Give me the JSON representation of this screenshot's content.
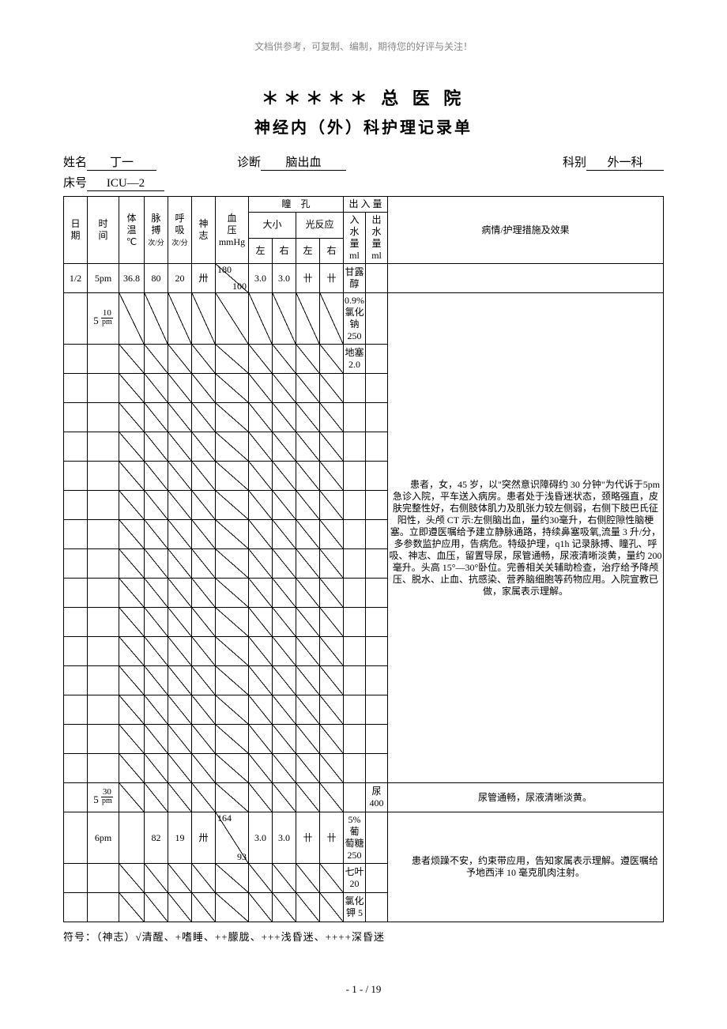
{
  "headerNote": "文档供参考，可复制、编制，期待您的好评与关注！",
  "hospitalTitle": "＊＊＊＊＊ 总 医 院",
  "formTitle": "神经内（外）科护理记录单",
  "labels": {
    "name": "姓名",
    "diagnosis": "诊断",
    "dept": "科别",
    "bed": "床号"
  },
  "patient": {
    "name": "丁一",
    "diagnosis": "脑出血",
    "dept": "外一科",
    "bed": "ICU—2"
  },
  "headers": {
    "date": "日\n期",
    "time": "时\n间",
    "temp": "体\n温\n℃",
    "pulse": "脉\n搏",
    "pulseUnit": "次/分",
    "resp": "呼\n吸",
    "respUnit": "次/分",
    "mind": "神\n志",
    "bp": "血\n压\nmmHg",
    "pupil": "瞳　孔",
    "pupilSize": "大小",
    "pupilLight": "光反应",
    "left": "左",
    "right": "右",
    "io": "出 入 量",
    "inWater": "入\n水\n量\nml",
    "outWater": "出\n水\n量\nml",
    "notes": "病情/护理措施及效果"
  },
  "rows": [
    {
      "date": "1/2",
      "time": "5pm",
      "temp": "36.8",
      "pulse": "80",
      "resp": "20",
      "mind": "卅",
      "bp": {
        "sys": "180",
        "dia": "100"
      },
      "pl": "3.0",
      "pr": "3.0",
      "ll": "卄",
      "lr": "卄",
      "in": "甘露\n醇",
      "out": "",
      "diag": false
    },
    {
      "date": "",
      "time": {
        "big": "5",
        "num": "10",
        "den": "pm"
      },
      "temp": "",
      "pulse": "",
      "resp": "",
      "mind": "",
      "bp": null,
      "pl": "",
      "pr": "",
      "ll": "",
      "lr": "",
      "in": "0.9%\n氯化\n钠\n250",
      "out": "",
      "diag": true
    },
    {
      "date": "",
      "time": "",
      "temp": "",
      "pulse": "",
      "resp": "",
      "mind": "",
      "bp": null,
      "pl": "",
      "pr": "",
      "ll": "",
      "lr": "",
      "in": "地塞\n2.0",
      "out": "",
      "diag": true
    },
    {
      "date": "",
      "time": "",
      "temp": "",
      "pulse": "",
      "resp": "",
      "mind": "",
      "bp": null,
      "pl": "",
      "pr": "",
      "ll": "",
      "lr": "",
      "in": "",
      "out": "",
      "diag": true
    },
    {
      "date": "",
      "time": "",
      "temp": "",
      "pulse": "",
      "resp": "",
      "mind": "",
      "bp": null,
      "pl": "",
      "pr": "",
      "ll": "",
      "lr": "",
      "in": "",
      "out": "",
      "diag": true
    },
    {
      "date": "",
      "time": "",
      "temp": "",
      "pulse": "",
      "resp": "",
      "mind": "",
      "bp": null,
      "pl": "",
      "pr": "",
      "ll": "",
      "lr": "",
      "in": "",
      "out": "",
      "diag": true
    },
    {
      "date": "",
      "time": "",
      "temp": "",
      "pulse": "",
      "resp": "",
      "mind": "",
      "bp": null,
      "pl": "",
      "pr": "",
      "ll": "",
      "lr": "",
      "in": "",
      "out": "",
      "diag": true
    },
    {
      "date": "",
      "time": "",
      "temp": "",
      "pulse": "",
      "resp": "",
      "mind": "",
      "bp": null,
      "pl": "",
      "pr": "",
      "ll": "",
      "lr": "",
      "in": "",
      "out": "",
      "diag": true
    },
    {
      "date": "",
      "time": "",
      "temp": "",
      "pulse": "",
      "resp": "",
      "mind": "",
      "bp": null,
      "pl": "",
      "pr": "",
      "ll": "",
      "lr": "",
      "in": "",
      "out": "",
      "diag": true
    },
    {
      "date": "",
      "time": "",
      "temp": "",
      "pulse": "",
      "resp": "",
      "mind": "",
      "bp": null,
      "pl": "",
      "pr": "",
      "ll": "",
      "lr": "",
      "in": "",
      "out": "",
      "diag": true
    },
    {
      "date": "",
      "time": "",
      "temp": "",
      "pulse": "",
      "resp": "",
      "mind": "",
      "bp": null,
      "pl": "",
      "pr": "",
      "ll": "",
      "lr": "",
      "in": "",
      "out": "",
      "diag": true
    },
    {
      "date": "",
      "time": "",
      "temp": "",
      "pulse": "",
      "resp": "",
      "mind": "",
      "bp": null,
      "pl": "",
      "pr": "",
      "ll": "",
      "lr": "",
      "in": "",
      "out": "",
      "diag": true
    },
    {
      "date": "",
      "time": "",
      "temp": "",
      "pulse": "",
      "resp": "",
      "mind": "",
      "bp": null,
      "pl": "",
      "pr": "",
      "ll": "",
      "lr": "",
      "in": "",
      "out": "",
      "diag": true
    },
    {
      "date": "",
      "time": "",
      "temp": "",
      "pulse": "",
      "resp": "",
      "mind": "",
      "bp": null,
      "pl": "",
      "pr": "",
      "ll": "",
      "lr": "",
      "in": "",
      "out": "",
      "diag": true
    },
    {
      "date": "",
      "time": "",
      "temp": "",
      "pulse": "",
      "resp": "",
      "mind": "",
      "bp": null,
      "pl": "",
      "pr": "",
      "ll": "",
      "lr": "",
      "in": "",
      "out": "",
      "diag": true
    },
    {
      "date": "",
      "time": "",
      "temp": "",
      "pulse": "",
      "resp": "",
      "mind": "",
      "bp": null,
      "pl": "",
      "pr": "",
      "ll": "",
      "lr": "",
      "in": "",
      "out": "",
      "diag": true
    },
    {
      "date": "",
      "time": "",
      "temp": "",
      "pulse": "",
      "resp": "",
      "mind": "",
      "bp": null,
      "pl": "",
      "pr": "",
      "ll": "",
      "lr": "",
      "in": "",
      "out": "",
      "diag": true
    },
    {
      "date": "",
      "time": {
        "big": "5",
        "num": "30",
        "den": "pm"
      },
      "temp": "",
      "pulse": "",
      "resp": "",
      "mind": "",
      "bp": null,
      "pl": "",
      "pr": "",
      "ll": "",
      "lr": "",
      "in": "",
      "out": "尿\n400",
      "diag": true
    },
    {
      "date": "",
      "time": "6pm",
      "temp": "",
      "pulse": "82",
      "resp": "19",
      "mind": "卅",
      "bp": {
        "sys": "164",
        "dia": "93"
      },
      "pl": "3.0",
      "pr": "3.0",
      "ll": "卄",
      "lr": "卄",
      "in": "5%葡\n萄糖\n250",
      "out": "",
      "diag": false
    },
    {
      "date": "",
      "time": "",
      "temp": "",
      "pulse": "",
      "resp": "",
      "mind": "",
      "bp": null,
      "pl": "",
      "pr": "",
      "ll": "",
      "lr": "",
      "in": "七叶\n20",
      "out": "",
      "diag": true
    },
    {
      "date": "",
      "time": "",
      "temp": "",
      "pulse": "",
      "resp": "",
      "mind": "",
      "bp": null,
      "pl": "",
      "pr": "",
      "ll": "",
      "lr": "",
      "in": "氯化\n钾 5",
      "out": "",
      "diag": true
    }
  ],
  "noteBlocks": [
    {
      "span": 16,
      "text": "患者，女，45 岁，以\"突然意识障碍约 30 分钟\"为代诉于5pm 急诊入院，平车送入病房。患者处于浅昏迷状态，颈略强直，皮肤完整性好，右侧肢体肌力及肌张力较左侧弱，右侧下肢巴氏征阳性，头颅 CT 示:左侧脑出血，量约30毫升，右侧腔隙性脑梗塞。立即遵医嘱给予建立静脉通路，持续鼻塞吸氧,流量 3 升/分，多参数监护应用，告病危。特级护理，q1h 记录脉搏、瞳孔、呼吸、神志、血压，留置导尿，尿管通畅，尿液清晰淡黄，量约 200 毫升。头高 15°—30°卧位。完善相关关辅助检查，治疗给予降颅压、脱水、止血、抗感染、营养脑细胞等药物应用。入院宣教已做，家属表示理解。"
    },
    {
      "span": 1,
      "text": "尿管通畅，尿液清晰淡黄。"
    },
    {
      "span": 3,
      "text": "患者烦躁不安，约束带应用，告知家属表示理解。遵医嘱给予地西泮 10 毫克肌肉注射。"
    }
  ],
  "legend": "符号：（神志）√清醒、+嗜睡、++朦胧、+++浅昏迷、++++深昏迷",
  "pageNumber": "- 1 -  / 19"
}
